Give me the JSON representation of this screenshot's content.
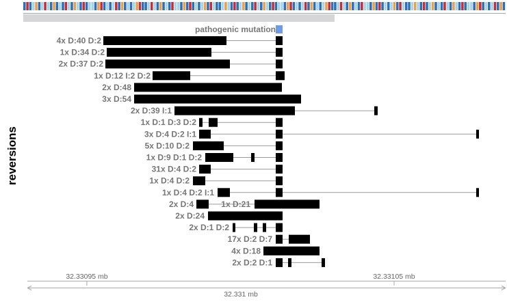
{
  "y_axis_label": "reversions",
  "mutation": {
    "label": "pathogenic mutation",
    "color": "#6f9be8"
  },
  "nucleotide_strip": {
    "colors": [
      "#a8d4ea",
      "#2f6fb8",
      "#c0303a",
      "#e6a04e",
      "#ffffff"
    ],
    "sequence": "BRBLOBLRLBOBLBRLBOLBRBLLBORBLBLRBOBLBLORBBLRLBOBLBRLLBOBRBLBLOBRLBBLOLBRBLOBLBRLBOLBRBLLBORBLBLRBOBLBLORBBLRLBOBLBRLLBOBRBLBLOBRLBBLOLBRBLOBLBRLBOLBRBLLBORBLBLRBOB"
  },
  "coverage_bar_color": "#d6d6d6",
  "reversions": [
    {
      "label": "4x D:40 D:2"
    },
    {
      "label": "1x D:34 D:2"
    },
    {
      "label": "2x D:37 D:2"
    },
    {
      "label": "1x D:12 I:2 D:2"
    },
    {
      "label": "2x D:48"
    },
    {
      "label": "3x D:54"
    },
    {
      "label": "2x D:39 I:1"
    },
    {
      "label": "1x D:1 D:3 D:2"
    },
    {
      "label": "3x D:4 D:2 I:1"
    },
    {
      "label": "5x D:10 D:2"
    },
    {
      "label": "1x D:9 D:1 D:2"
    },
    {
      "label": "31x D:4 D:2"
    },
    {
      "label": "1x D:4 D:2"
    },
    {
      "label": "1x D:4 D:2 I:1"
    },
    {
      "label": "2x D:4",
      "label2": "1x D:21"
    },
    {
      "label": "2x D:24"
    },
    {
      "label": "2x D:1 D:2"
    },
    {
      "label": "17x D:2 D:7"
    },
    {
      "label": "4x D:18"
    },
    {
      "label": "2x D:2 D:1"
    }
  ],
  "axis": {
    "tick_labels": [
      "32.33095 mb",
      "32.33105 mb"
    ],
    "center_label": "32.331 mb"
  }
}
